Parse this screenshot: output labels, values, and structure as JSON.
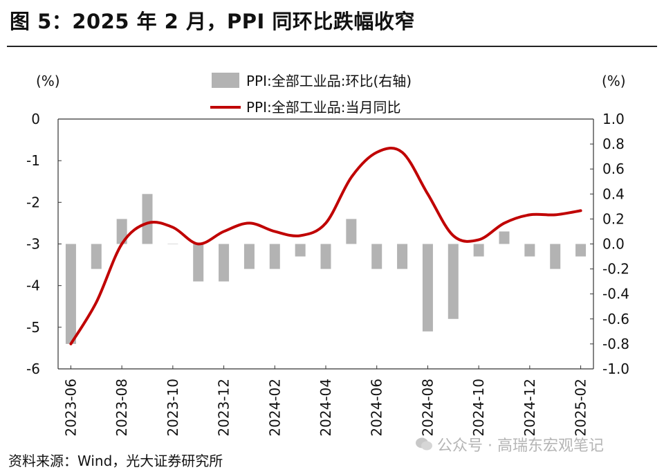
{
  "title": "图 5：2025 年 2 月，PPI 同环比跌幅收窄",
  "source": "资料来源：Wind，光大证券研究所",
  "watermark": "公众号 · 高瑞东宏观笔记",
  "chart_data": {
    "type": "bar+line",
    "left_axis": {
      "unit_label": "(%)",
      "ylim": [
        -6,
        0
      ],
      "ticks": [
        "0",
        "-1",
        "-2",
        "-3",
        "-4",
        "-5",
        "-6"
      ]
    },
    "right_axis": {
      "unit_label": "(%)",
      "ylim": [
        -1.0,
        1.0
      ],
      "ticks": [
        "1.0",
        "0.8",
        "0.6",
        "0.4",
        "0.2",
        "0.0",
        "-0.2",
        "-0.4",
        "-0.6",
        "-0.8",
        "-1.0"
      ]
    },
    "x_tick_labels": [
      "2023-06",
      "2023-08",
      "2023-10",
      "2023-12",
      "2024-02",
      "2024-04",
      "2024-06",
      "2024-08",
      "2024-10",
      "2024-12",
      "2025-02"
    ],
    "categories": [
      "2023-06",
      "2023-07",
      "2023-08",
      "2023-09",
      "2023-10",
      "2023-11",
      "2023-12",
      "2024-01",
      "2024-02",
      "2024-03",
      "2024-04",
      "2024-05",
      "2024-06",
      "2024-07",
      "2024-08",
      "2024-09",
      "2024-10",
      "2024-11",
      "2024-12",
      "2025-01",
      "2025-02"
    ],
    "series": [
      {
        "name": "PPI:全部工业品:环比(右轴)",
        "type": "bar",
        "axis": "right",
        "color": "#b3b3b3",
        "values": [
          -0.8,
          -0.2,
          0.2,
          0.4,
          0.0,
          -0.3,
          -0.3,
          -0.2,
          -0.2,
          -0.1,
          -0.2,
          0.2,
          -0.2,
          -0.2,
          -0.7,
          -0.6,
          -0.1,
          0.1,
          -0.1,
          -0.2,
          -0.1
        ]
      },
      {
        "name": "PPI:全部工业品:当月同比",
        "type": "line",
        "axis": "left",
        "color": "#c00000",
        "values": [
          -5.4,
          -4.4,
          -3.0,
          -2.5,
          -2.6,
          -3.0,
          -2.7,
          -2.5,
          -2.7,
          -2.8,
          -2.5,
          -1.4,
          -0.8,
          -0.8,
          -1.8,
          -2.8,
          -2.9,
          -2.5,
          -2.3,
          -2.3,
          -2.2
        ]
      }
    ]
  }
}
